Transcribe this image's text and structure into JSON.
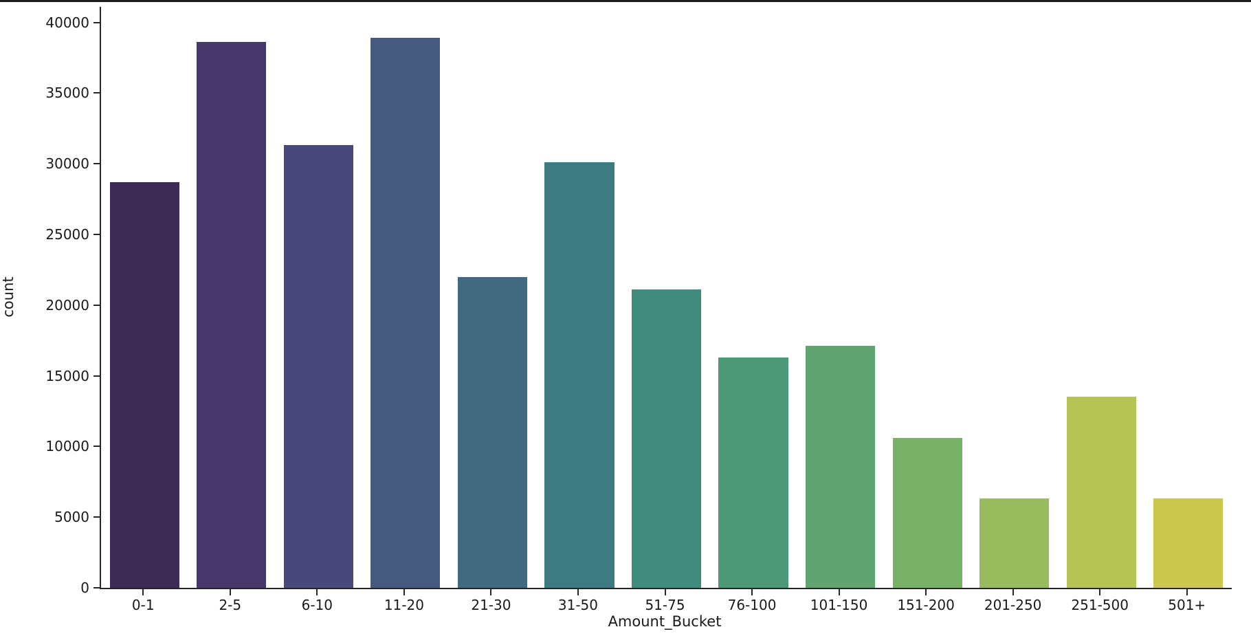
{
  "page": {
    "background": "#ffffff",
    "top_border_color": "#1b1b1b",
    "spine_color": "#262626",
    "text_color": "#1a1a1a"
  },
  "chart_data": {
    "type": "bar",
    "title": "",
    "xlabel": "Amount_Bucket",
    "ylabel": "count",
    "categories": [
      "0-1",
      "2-5",
      "6-10",
      "11-20",
      "21-30",
      "31-50",
      "51-75",
      "76-100",
      "101-150",
      "151-200",
      "201-250",
      "251-500",
      "501+"
    ],
    "values": [
      28700,
      38600,
      31300,
      38900,
      22000,
      30100,
      21100,
      16300,
      17100,
      10600,
      6300,
      13500,
      6300
    ],
    "bar_colors": [
      "#3d2b55",
      "#46386b",
      "#48497a",
      "#465a7f",
      "#416a80",
      "#3e7a81",
      "#418a7e",
      "#4d9878",
      "#60a471",
      "#79b167",
      "#97bb5d",
      "#b6c355",
      "#ccc74e"
    ],
    "ylim": [
      0,
      41100
    ],
    "yticks": [
      0,
      5000,
      10000,
      15000,
      20000,
      25000,
      30000,
      35000,
      40000
    ],
    "bar_rel_width": 0.8,
    "grid": false,
    "legend_position": "none"
  }
}
